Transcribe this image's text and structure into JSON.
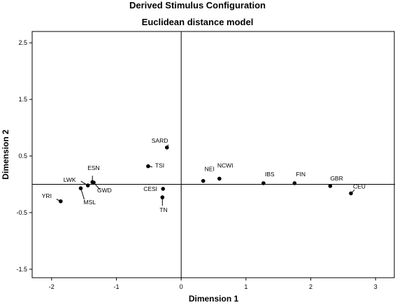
{
  "chart_data": {
    "type": "scatter",
    "title": "Derived Stimulus Configuration",
    "subtitle": "Euclidean distance model",
    "xlabel": "Dimension 1",
    "ylabel": "Dimension 2",
    "xlim": [
      -2.3,
      3.3
    ],
    "ylim": [
      -1.65,
      2.7
    ],
    "xticks": [
      "-2",
      "-1",
      "0",
      "1",
      "2",
      "3"
    ],
    "xtick_values": [
      -2,
      -1,
      0,
      1,
      2,
      3
    ],
    "yticks": [
      "2.5",
      "1.5",
      "0.5",
      "-0.5",
      "-1.5"
    ],
    "ytick_values": [
      2.5,
      1.5,
      0.5,
      -0.5,
      -1.5
    ],
    "reference_lines": {
      "x": 0,
      "y": 0
    },
    "grid": false,
    "legend": "none",
    "points": [
      {
        "label": "SARD",
        "x": -0.22,
        "y": 0.65
      },
      {
        "label": "TSI",
        "x": -0.51,
        "y": 0.32
      },
      {
        "label": "NEI",
        "x": 0.34,
        "y": 0.06
      },
      {
        "label": "NCWI",
        "x": 0.59,
        "y": 0.1
      },
      {
        "label": "IBS",
        "x": 1.27,
        "y": 0.02
      },
      {
        "label": "FIN",
        "x": 1.75,
        "y": 0.02
      },
      {
        "label": "GBR",
        "x": 2.3,
        "y": -0.03
      },
      {
        "label": "CEU",
        "x": 2.62,
        "y": -0.16
      },
      {
        "label": "CESI",
        "x": -0.28,
        "y": -0.08
      },
      {
        "label": "TN",
        "x": -0.29,
        "y": -0.23
      },
      {
        "label": "ESN",
        "x": -1.37,
        "y": 0.04
      },
      {
        "label": "LWK",
        "x": -1.44,
        "y": -0.02
      },
      {
        "label": "GWD",
        "x": -1.35,
        "y": 0.03
      },
      {
        "label": "MSL",
        "x": -1.55,
        "y": -0.07
      },
      {
        "label": "YRI",
        "x": -1.86,
        "y": -0.3
      }
    ]
  }
}
